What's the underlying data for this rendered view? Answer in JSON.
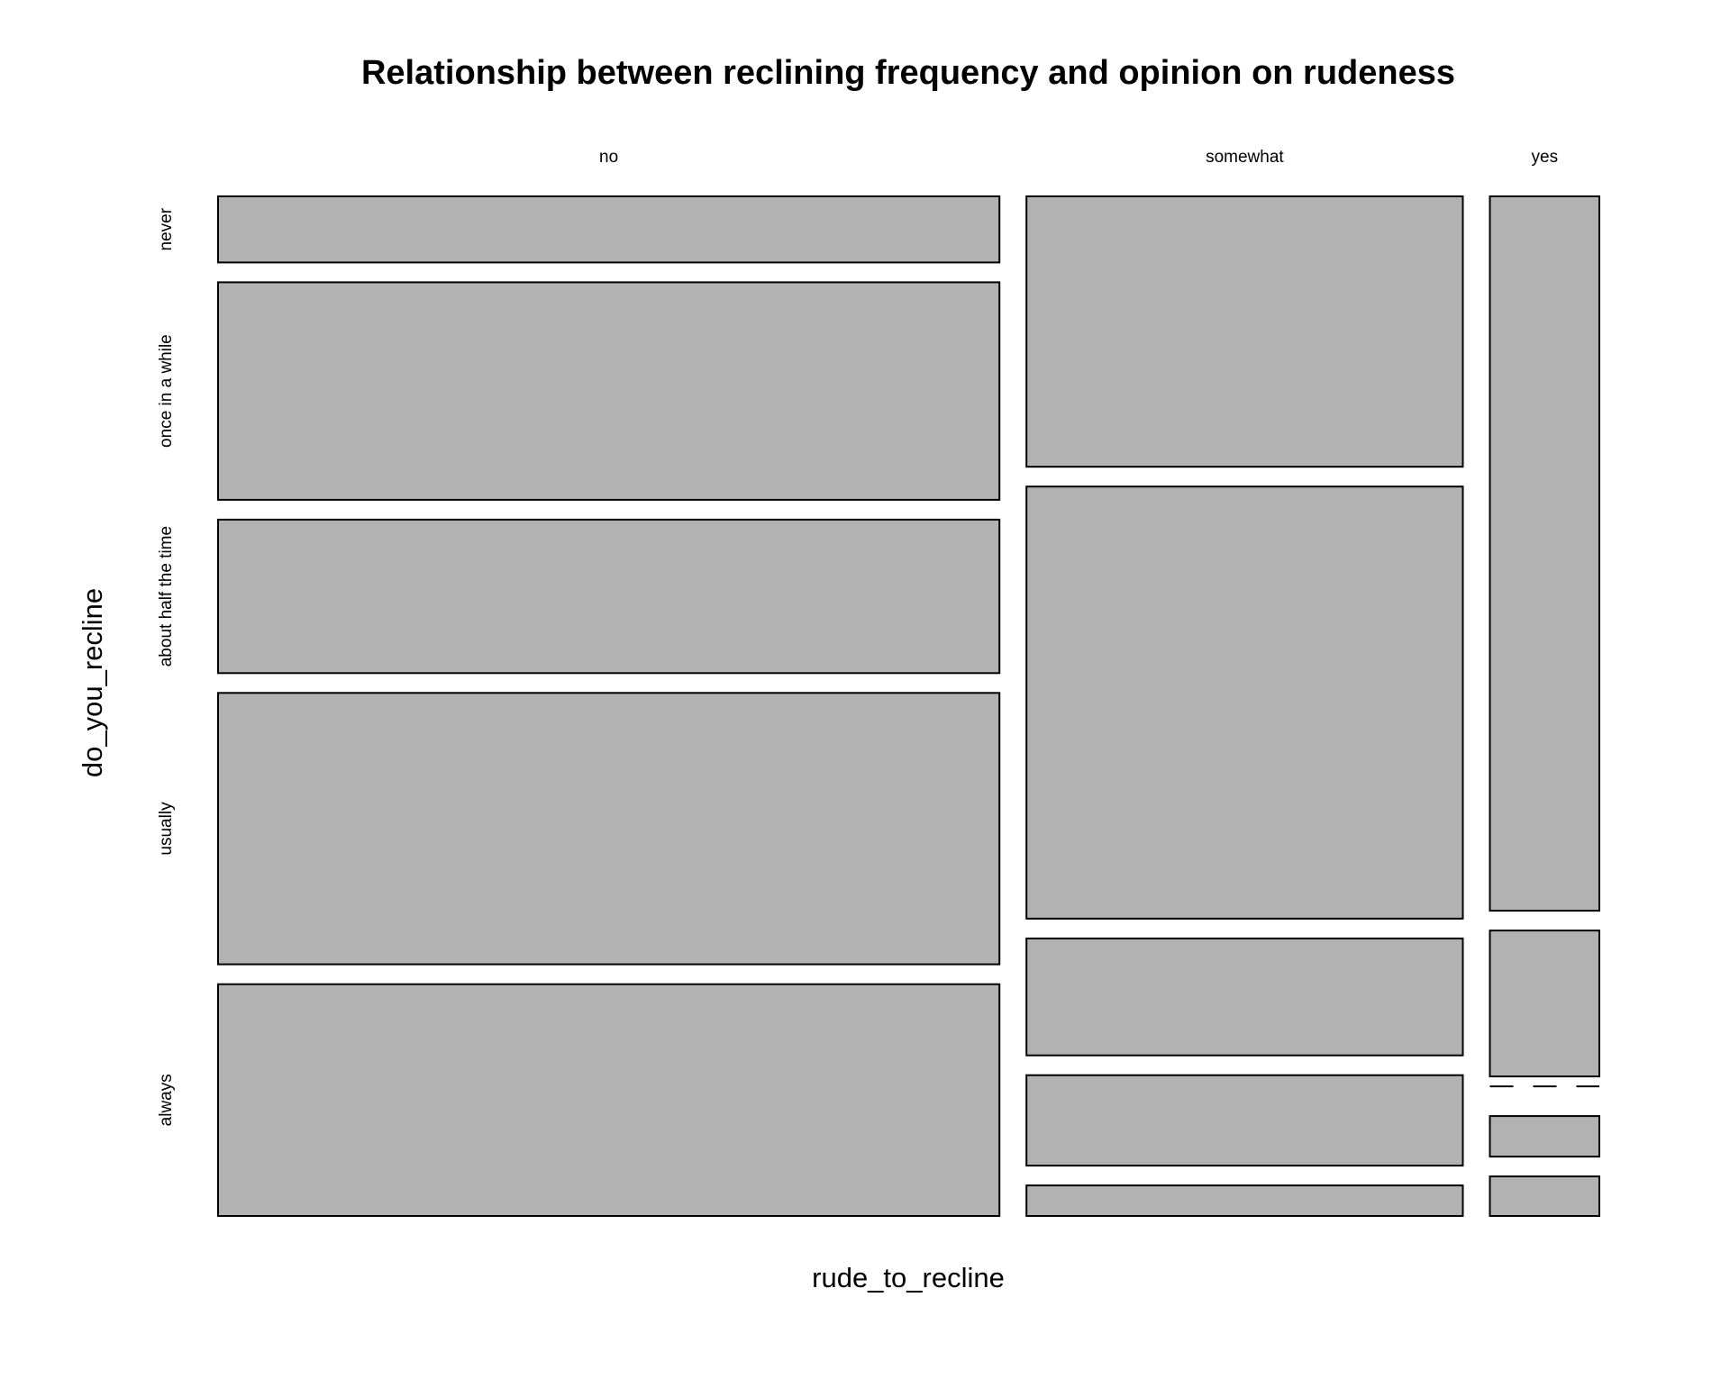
{
  "chart_data": {
    "type": "mosaic",
    "title": "Relationship between reclining frequency and opinion on rudeness",
    "xlabel": "rude_to_recline",
    "ylabel": "do_you_recline",
    "x_categories": [
      "no",
      "somewhat",
      "yes"
    ],
    "y_categories": [
      "never",
      "once in a while",
      "about half the time",
      "usually",
      "always"
    ],
    "series": [
      {
        "name": "no",
        "proportions": [
          0.065,
          0.214,
          0.151,
          0.267,
          0.228
        ]
      },
      {
        "name": "somewhat",
        "proportions": [
          0.266,
          0.425,
          0.115,
          0.089,
          0.03
        ]
      },
      {
        "name": "yes",
        "proportions": [
          0.705,
          0.144,
          0.0,
          0.04,
          0.039
        ]
      }
    ],
    "column_widths": [
      0.564,
      0.315,
      0.079
    ],
    "fill_color": "#b2b2b2",
    "stroke_color": "#000000",
    "grid": false,
    "legend": "none"
  }
}
